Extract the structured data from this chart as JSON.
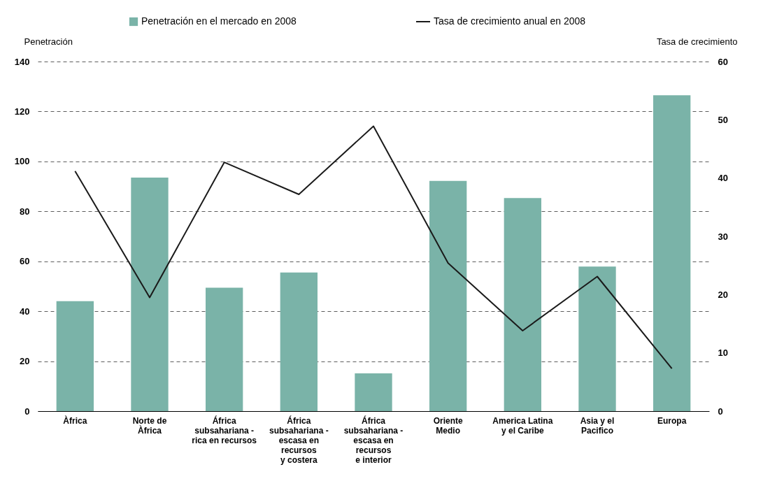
{
  "chart_data": {
    "type": "bar",
    "categories": [
      "Àfrica",
      "Norte de\nÀfrica",
      "África\nsubsahariana -\nrica en recursos",
      "África\nsubsahariana -\nescasa en\nrecursos\ny costera",
      "África\nsubsahariana -\nescasa en\nrecursos\ne interior",
      "Oriente\nMedio",
      "America Latina\ny el Caribe",
      "Asia y el\nPacifico",
      "Europa"
    ],
    "ylabel": "Penetración",
    "y2label": "Tasa de crecimiento",
    "ylim": [
      0,
      140
    ],
    "yticks": [
      0,
      20,
      40,
      60,
      80,
      100,
      120,
      140
    ],
    "y2lim": [
      0,
      60
    ],
    "y2ticks": [
      0,
      10,
      20,
      30,
      40,
      50,
      60
    ],
    "grid": "y",
    "legend": "top",
    "series": [
      {
        "name": "Penetración en el mercado en 2008",
        "color": "#7ab3a8",
        "values": [
          44,
          93.5,
          49.4,
          55.5,
          15.1,
          92.2,
          85.3,
          57.9,
          126.5
        ]
      },
      {
        "name": "Tasa de crecimiento anual en 2008",
        "type": "line",
        "axis": "y2",
        "color": "#1a1a1a",
        "marker": "none",
        "line_style": "solid",
        "values": [
          41.2,
          19.5,
          42.7,
          37.2,
          48.9,
          25.4,
          13.8,
          23.1,
          7.3
        ]
      }
    ]
  }
}
